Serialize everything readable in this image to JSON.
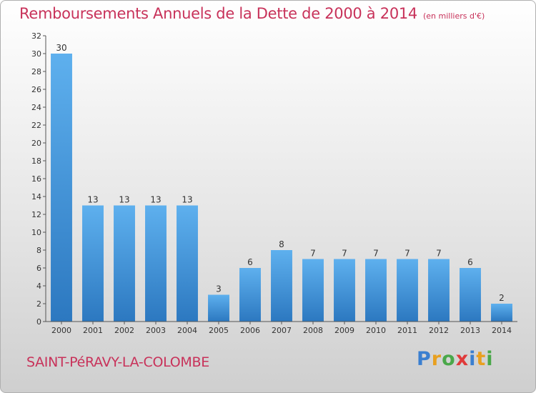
{
  "header": {
    "title": "Remboursements Annuels de la Dette de 2000 à 2014",
    "unit": "(en milliers d'€)"
  },
  "footer": {
    "town": "SAINT-PéRAVY-LA-COLOMBE",
    "brand_letters": [
      "P",
      "r",
      "o",
      "x",
      "i",
      "t",
      "i"
    ],
    "brand_colors": [
      "#3a7fd0",
      "#e8a020",
      "#4aa84a",
      "#e03a3a",
      "#3a7fd0",
      "#e8a020",
      "#4aa84a"
    ]
  },
  "colors": {
    "bar_top": "#5eb0ee",
    "bar_bottom": "#2c78c0",
    "accent": "#c8325a"
  },
  "chart_data": {
    "type": "bar",
    "title": "Remboursements Annuels de la Dette de 2000 à 2014",
    "subtitle": "(en milliers d'€)",
    "xlabel": "",
    "ylabel": "",
    "ylim": [
      0,
      32
    ],
    "yticks": [
      0,
      2,
      4,
      6,
      8,
      10,
      12,
      14,
      16,
      18,
      20,
      22,
      24,
      26,
      28,
      30,
      32
    ],
    "categories": [
      "2000",
      "2001",
      "2002",
      "2003",
      "2004",
      "2005",
      "2006",
      "2007",
      "2008",
      "2009",
      "2010",
      "2011",
      "2012",
      "2013",
      "2014"
    ],
    "values": [
      30,
      13,
      13,
      13,
      13,
      3,
      6,
      8,
      7,
      7,
      7,
      7,
      7,
      6,
      2
    ],
    "grid": false,
    "legend": "none"
  }
}
